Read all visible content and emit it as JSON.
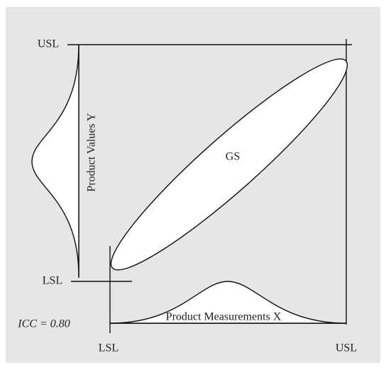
{
  "y_axis": {
    "upper_label": "USL",
    "lower_label": "LSL",
    "title": "Product Values Y"
  },
  "x_axis": {
    "lower_label": "LSL",
    "upper_label": "USL",
    "title": "Product Measurements X"
  },
  "region_label": "GS",
  "annotation": "ICC = 0.80"
}
